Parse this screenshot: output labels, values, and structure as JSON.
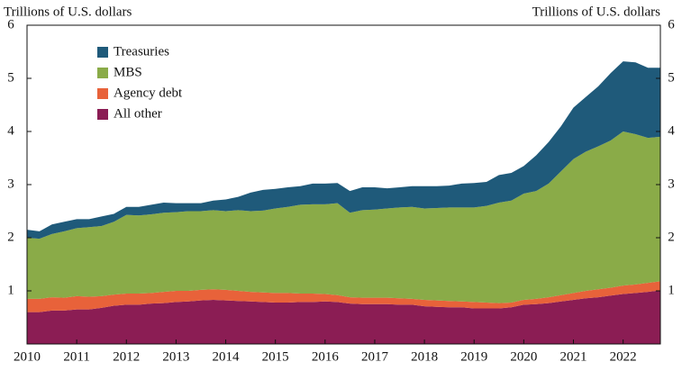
{
  "chart_data": {
    "type": "stacked_area",
    "y_label_left": "Trillions of U.S. dollars",
    "y_label_right": "Trillions of U.S. dollars",
    "categories": [
      "2010",
      null,
      null,
      null,
      "2011",
      null,
      null,
      null,
      "2012",
      null,
      null,
      null,
      "2013",
      null,
      null,
      null,
      "2014",
      null,
      null,
      null,
      "2015",
      null,
      null,
      null,
      "2016",
      null,
      null,
      null,
      "2017",
      null,
      null,
      null,
      "2018",
      null,
      null,
      null,
      "2019",
      null,
      null,
      null,
      "2020",
      null,
      null,
      null,
      "2021",
      null,
      null,
      null,
      "2022",
      null,
      null,
      null
    ],
    "series": [
      {
        "name": "Treasuries",
        "color": "#1f5a7a",
        "values": [
          0.15,
          0.14,
          0.18,
          0.18,
          0.17,
          0.15,
          0.18,
          0.15,
          0.15,
          0.16,
          0.18,
          0.19,
          0.17,
          0.15,
          0.15,
          0.18,
          0.22,
          0.25,
          0.35,
          0.39,
          0.37,
          0.37,
          0.35,
          0.39,
          0.39,
          0.38,
          0.41,
          0.43,
          0.42,
          0.38,
          0.38,
          0.39,
          0.42,
          0.41,
          0.41,
          0.45,
          0.46,
          0.45,
          0.52,
          0.52,
          0.52,
          0.67,
          0.78,
          0.85,
          0.97,
          1.03,
          1.13,
          1.27,
          1.32,
          1.35,
          1.32,
          1.3
        ]
      },
      {
        "name": "MBS",
        "color": "#8aab48",
        "values": [
          1.15,
          1.13,
          1.19,
          1.25,
          1.28,
          1.31,
          1.32,
          1.37,
          1.48,
          1.47,
          1.48,
          1.49,
          1.48,
          1.5,
          1.48,
          1.49,
          1.48,
          1.52,
          1.52,
          1.54,
          1.59,
          1.62,
          1.67,
          1.68,
          1.69,
          1.73,
          1.59,
          1.65,
          1.66,
          1.68,
          1.71,
          1.73,
          1.72,
          1.74,
          1.76,
          1.77,
          1.78,
          1.82,
          1.89,
          1.92,
          2.0,
          2.03,
          2.14,
          2.33,
          2.52,
          2.62,
          2.69,
          2.77,
          2.9,
          2.83,
          2.73,
          2.72
        ]
      },
      {
        "name": "Agency debt",
        "color": "#e8623a",
        "values": [
          0.25,
          0.25,
          0.25,
          0.24,
          0.25,
          0.24,
          0.22,
          0.21,
          0.21,
          0.21,
          0.2,
          0.21,
          0.21,
          0.2,
          0.2,
          0.2,
          0.2,
          0.19,
          0.18,
          0.18,
          0.18,
          0.18,
          0.16,
          0.16,
          0.14,
          0.13,
          0.12,
          0.12,
          0.12,
          0.12,
          0.12,
          0.11,
          0.12,
          0.12,
          0.12,
          0.11,
          0.12,
          0.11,
          0.1,
          0.09,
          0.09,
          0.1,
          0.11,
          0.12,
          0.13,
          0.14,
          0.15,
          0.15,
          0.16,
          0.16,
          0.17,
          0.17
        ]
      },
      {
        "name": "All other",
        "color": "#8b1d54",
        "values": [
          0.6,
          0.6,
          0.63,
          0.63,
          0.65,
          0.65,
          0.68,
          0.72,
          0.74,
          0.74,
          0.76,
          0.77,
          0.79,
          0.8,
          0.82,
          0.83,
          0.82,
          0.81,
          0.8,
          0.79,
          0.78,
          0.78,
          0.79,
          0.79,
          0.8,
          0.79,
          0.76,
          0.75,
          0.75,
          0.75,
          0.74,
          0.74,
          0.71,
          0.7,
          0.69,
          0.69,
          0.67,
          0.67,
          0.67,
          0.69,
          0.74,
          0.75,
          0.77,
          0.8,
          0.83,
          0.86,
          0.88,
          0.91,
          0.94,
          0.96,
          0.98,
          1.01
        ]
      }
    ],
    "ylim": [
      0,
      6
    ],
    "yticks": [
      1,
      2,
      3,
      4,
      5,
      6
    ],
    "legend": "upper-left"
  }
}
